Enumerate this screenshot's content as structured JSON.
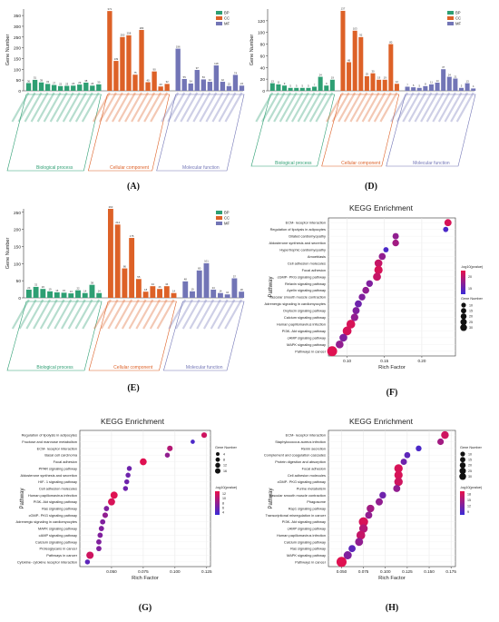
{
  "colors": {
    "bp": "#2e9f73",
    "cc": "#dd6127",
    "mf": "#7275b6",
    "dot_high": "#e8104a",
    "dot_low": "#3a2bd6"
  },
  "chart_data": [
    {
      "type": "bar",
      "panel": "A",
      "letter": "(A)",
      "ylabel": "Gene Number",
      "ylim": [
        0,
        380
      ],
      "yticks": [
        0,
        50,
        100,
        150,
        200,
        250,
        300,
        350
      ],
      "legend": [
        "BP",
        "CC",
        "MF"
      ],
      "group_labels": [
        "Biological process",
        "Cellular component",
        "Molecular function"
      ],
      "series": [
        {
          "name": "BP",
          "values": [
            36,
            51,
            39,
            32,
            27,
            22,
            23,
            24,
            29,
            38,
            24,
            30
          ]
        },
        {
          "name": "CC",
          "values": [
            371,
            139,
            250,
            258,
            75,
            283,
            40,
            90,
            20,
            32
          ]
        },
        {
          "name": "MF",
          "values": [
            196,
            55,
            34,
            97,
            53,
            42,
            118,
            42,
            22,
            74,
            24
          ]
        }
      ]
    },
    {
      "type": "bar",
      "panel": "D",
      "letter": "(D)",
      "ylabel": "Gene Number",
      "ylim": [
        0,
        140
      ],
      "yticks": [
        0,
        20,
        40,
        60,
        80,
        100,
        120
      ],
      "legend": [
        "BP",
        "CC",
        "MF"
      ],
      "group_labels": [
        "Biological process",
        "Cellular component",
        "Molecular function"
      ],
      "series": [
        {
          "name": "BP",
          "values": [
            13,
            11,
            9,
            5,
            5,
            5,
            5,
            7,
            24,
            9,
            19
          ]
        },
        {
          "name": "CC",
          "values": [
            137,
            49,
            103,
            92,
            25,
            30,
            19,
            19,
            80,
            12
          ]
        },
        {
          "name": "MF",
          "values": [
            7,
            6,
            5,
            8,
            11,
            14,
            37,
            24,
            21,
            5,
            13,
            4
          ]
        }
      ]
    },
    {
      "type": "bar",
      "panel": "E",
      "letter": "(E)",
      "ylabel": "Gene Number",
      "ylim": [
        0,
        260
      ],
      "yticks": [
        0,
        50,
        100,
        150,
        200,
        250
      ],
      "legend": [
        "BP",
        "CC",
        "MF"
      ],
      "group_labels": [
        "Biological process",
        "Cellular component",
        "Molecular function"
      ],
      "series": [
        {
          "name": "BP",
          "values": [
            24,
            32,
            26,
            19,
            16,
            15,
            13,
            22,
            14,
            38,
            14
          ]
        },
        {
          "name": "CC",
          "values": [
            260,
            214,
            86,
            175,
            55,
            18,
            34,
            26,
            34,
            14
          ]
        },
        {
          "name": "MF",
          "values": [
            48,
            19,
            80,
            101,
            24,
            14,
            10,
            57,
            18
          ]
        }
      ]
    },
    {
      "type": "scatter",
      "panel": "F",
      "letter": "(F)",
      "title": "KEGG Enrichment",
      "xlabel": "Rich Factor",
      "ylabel": "Pathway",
      "xlim": [
        0.075,
        0.245
      ],
      "xticks": [
        0.1,
        0.15,
        0.2
      ],
      "color_legend_title": "-log10(pvalue)",
      "color_ticks": [
        15,
        20
      ],
      "size_legend_title": "Gene Number",
      "size_ticks": [
        10,
        15,
        20,
        25,
        30
      ],
      "categories": [
        "ECM- receptor interaction",
        "Regulation of lipolysis in adipocytes",
        "Dilated cardiomyopathy",
        "Aldosterone synthesis and secretion",
        "Hypertrophic cardiomyopathy",
        "Amoebiasis",
        "Cell adhesion molecules",
        "Focal adhesion",
        "cGMP- PKG signaling pathway",
        "Relaxin signaling pathway",
        "Apelin signaling pathway",
        "Vascular smooth muscle contraction",
        "Adrenergic signaling in cardiomyocytes",
        "Oxytocin signaling pathway",
        "Calcium signaling pathway",
        "Human papillomavirus infection",
        "PI3K- Akt signaling pathway",
        "cAMP signaling pathway",
        "MAPK signaling pathway",
        "Pathways in cancer"
      ],
      "x": [
        0.235,
        0.232,
        0.165,
        0.165,
        0.152,
        0.147,
        0.142,
        0.142,
        0.14,
        0.13,
        0.125,
        0.12,
        0.115,
        0.112,
        0.11,
        0.105,
        0.1,
        0.095,
        0.09,
        0.08
      ],
      "size": [
        14,
        6,
        10,
        12,
        6,
        13,
        18,
        21,
        19,
        12,
        13,
        12,
        14,
        14,
        16,
        24,
        25,
        18,
        18,
        33
      ],
      "color": [
        0.9,
        0.1,
        0.5,
        0.6,
        0.1,
        0.5,
        0.8,
        0.9,
        0.8,
        0.4,
        0.5,
        0.4,
        0.3,
        0.4,
        0.5,
        0.9,
        0.9,
        0.4,
        0.5,
        0.95
      ]
    },
    {
      "type": "scatter",
      "panel": "G",
      "letter": "(G)",
      "title": "KEGG Enrichment",
      "xlabel": "Rich Factor",
      "ylabel": "Pathway",
      "xlim": [
        0.025,
        0.128
      ],
      "xticks": [
        0.05,
        0.075,
        0.1,
        0.125
      ],
      "color_legend_title": "-log10(pvalue)",
      "color_ticks": [
        4,
        6,
        8,
        10,
        12
      ],
      "size_legend_title": "Gene Number",
      "size_ticks": [
        4,
        8,
        12,
        16
      ],
      "categories": [
        "Regulation of lipolysis in adipocytes",
        "Fructose and mannose metabolism",
        "ECM- receptor interaction",
        "Basal cell carcinoma",
        "Focal adhesion",
        "PPAR signaling pathway",
        "Aldosterone synthesis and secretion",
        "HIF- 1 signaling pathway",
        "Cell adhesion molecules",
        "Human papillomavirus infection",
        "PI3K- Akt signaling pathway",
        "Ras signaling pathway",
        "cGMP- PKG signaling pathway",
        "Adrenergic signaling in cardiomyocytes",
        "MAPK signaling pathway",
        "cAMP signaling pathway",
        "Calcium signaling pathway",
        "Proteoglycans in cancer",
        "Pathways in cancer",
        "Cytokine- cytokine receptor interaction"
      ],
      "x": [
        0.123,
        0.114,
        0.096,
        0.094,
        0.075,
        0.064,
        0.063,
        0.062,
        0.061,
        0.052,
        0.05,
        0.046,
        0.045,
        0.043,
        0.042,
        0.041,
        0.04,
        0.04,
        0.033,
        0.031
      ],
      "size": [
        7,
        3,
        7,
        5,
        13,
        5,
        5,
        5,
        5,
        14,
        14,
        6,
        7,
        6,
        6,
        6,
        6,
        6,
        15,
        5
      ],
      "color": [
        0.85,
        0.1,
        0.7,
        0.5,
        0.95,
        0.3,
        0.3,
        0.3,
        0.3,
        0.95,
        0.9,
        0.4,
        0.5,
        0.4,
        0.4,
        0.4,
        0.4,
        0.4,
        0.85,
        0.2
      ]
    },
    {
      "type": "scatter",
      "panel": "H",
      "letter": "(H)",
      "title": "KEGG Enrichment",
      "xlabel": "Rich Factor",
      "ylabel": "Pathway",
      "xlim": [
        0.035,
        0.18
      ],
      "xticks": [
        0.05,
        0.075,
        0.1,
        0.125,
        0.15,
        0.175
      ],
      "color_legend_title": "-log10(pvalue)",
      "color_ticks": [
        9,
        12,
        15,
        18
      ],
      "size_legend_title": "Gene Number",
      "size_ticks": [
        10,
        15,
        20,
        25,
        30
      ],
      "categories": [
        "ECM- receptor interaction",
        "Staphylococcus aureus infection",
        "Renin secretion",
        "Complement and coagulation cascades",
        "Protein digestion and absorption",
        "Focal adhesion",
        "Cell adhesion molecules",
        "cGMP- PKG signaling pathway",
        "Purine metabolism",
        "Vascular smooth muscle contraction",
        "Phagosome",
        "Rap1 signaling pathway",
        "Transcriptional misregulation in cancer",
        "PI3K- Akt signaling pathway",
        "cAMP signaling pathway",
        "Human papillomavirus infection",
        "Calcium signaling pathway",
        "Ras signaling pathway",
        "MAPK signaling pathway",
        "Pathways in cancer"
      ],
      "x": [
        0.168,
        0.163,
        0.138,
        0.125,
        0.121,
        0.115,
        0.115,
        0.115,
        0.113,
        0.097,
        0.093,
        0.083,
        0.081,
        0.075,
        0.075,
        0.072,
        0.07,
        0.062,
        0.057,
        0.05
      ],
      "size": [
        17,
        11,
        8,
        9,
        10,
        22,
        21,
        22,
        14,
        12,
        15,
        17,
        14,
        28,
        22,
        24,
        19,
        14,
        20,
        34
      ],
      "color": [
        0.85,
        0.6,
        0.1,
        0.2,
        0.3,
        0.9,
        0.9,
        0.85,
        0.5,
        0.3,
        0.5,
        0.6,
        0.5,
        0.9,
        0.7,
        0.8,
        0.5,
        0.2,
        0.4,
        0.95
      ]
    }
  ]
}
